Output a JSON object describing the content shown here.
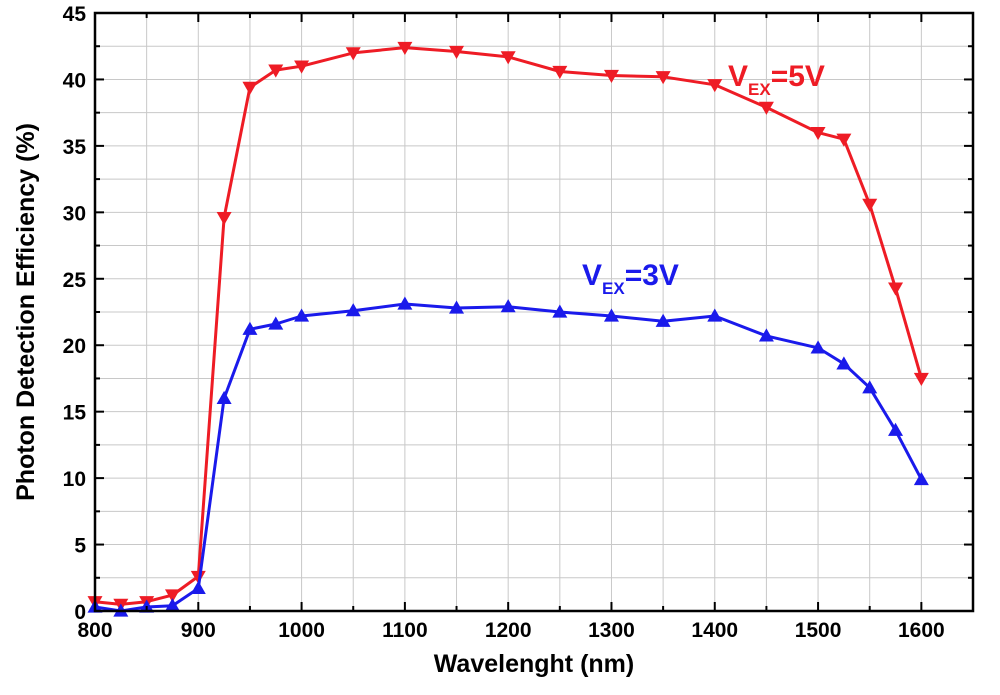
{
  "chart_data": {
    "type": "line",
    "xlabel": "Wavelenght (nm)",
    "ylabel": "Photon Detection Efficiency (%)",
    "xlim": [
      800,
      1650
    ],
    "ylim": [
      0,
      45
    ],
    "x_ticks": [
      800,
      900,
      1000,
      1100,
      1200,
      1300,
      1400,
      1500,
      1600
    ],
    "y_ticks": [
      0,
      5,
      10,
      15,
      20,
      25,
      30,
      35,
      40,
      45
    ],
    "grid": true,
    "series": [
      {
        "name_main": "V",
        "name_sub": "EX",
        "name_suffix": "=5V",
        "color": "#ee1c25",
        "marker": "triangle-down",
        "x": [
          800,
          825,
          850,
          875,
          900,
          925,
          950,
          975,
          1000,
          1050,
          1100,
          1150,
          1200,
          1250,
          1300,
          1350,
          1400,
          1450,
          1500,
          1525,
          1550,
          1575,
          1600
        ],
        "y": [
          0.7,
          0.5,
          0.7,
          1.2,
          2.6,
          29.6,
          39.4,
          40.7,
          41.0,
          42.0,
          42.4,
          42.1,
          41.7,
          40.6,
          40.3,
          40.2,
          39.6,
          37.9,
          36.0,
          35.5,
          30.6,
          24.3,
          17.5
        ]
      },
      {
        "name_main": "V",
        "name_sub": "EX",
        "name_suffix": "=3V",
        "color": "#1a1aeb",
        "marker": "triangle-up",
        "x": [
          800,
          825,
          850,
          875,
          900,
          925,
          950,
          975,
          1000,
          1050,
          1100,
          1150,
          1200,
          1250,
          1300,
          1350,
          1400,
          1450,
          1500,
          1525,
          1550,
          1575,
          1600
        ],
        "y": [
          0.3,
          0.0,
          0.3,
          0.4,
          1.7,
          16.0,
          21.2,
          21.6,
          22.2,
          22.6,
          23.1,
          22.8,
          22.9,
          22.5,
          22.2,
          21.8,
          22.2,
          20.7,
          19.8,
          18.6,
          16.8,
          13.6,
          9.9
        ]
      }
    ]
  }
}
